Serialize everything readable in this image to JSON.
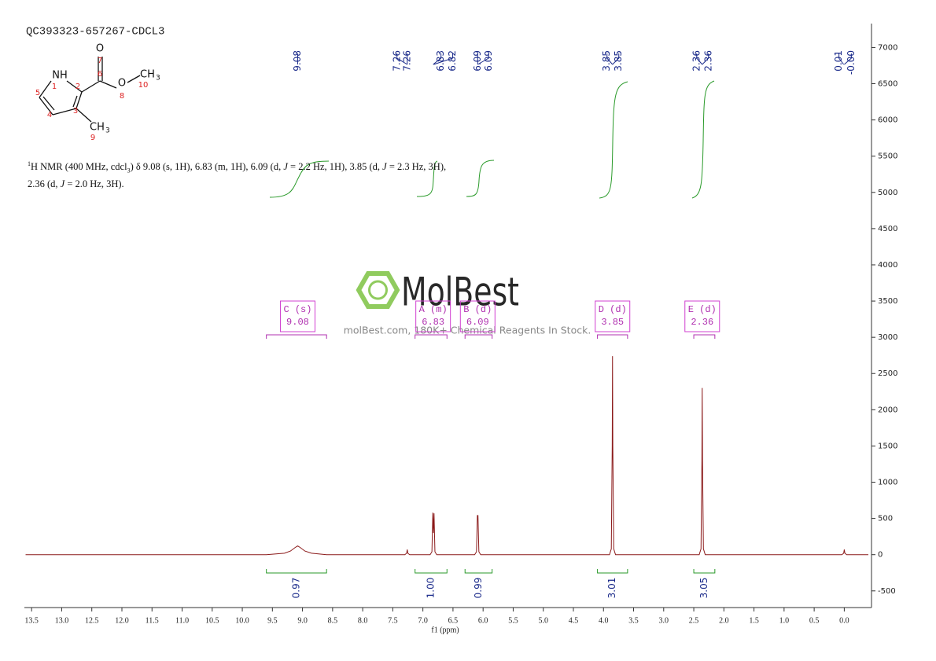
{
  "chart_data": {
    "type": "line",
    "title": "QC393323-657267-CDCL3",
    "xlabel": "f1 (ppm)",
    "x": [
      13.6,
      9.6,
      9.3,
      9.2,
      9.12,
      9.08,
      9.04,
      8.96,
      8.85,
      8.6,
      7.3,
      7.27,
      7.26,
      7.25,
      7.22,
      6.88,
      6.85,
      6.835,
      6.825,
      6.815,
      6.8,
      6.77,
      6.14,
      6.11,
      6.095,
      6.085,
      6.07,
      6.04,
      3.9,
      3.87,
      3.855,
      3.85,
      3.845,
      3.83,
      3.8,
      2.41,
      2.38,
      2.365,
      2.36,
      2.355,
      2.34,
      2.31,
      0.04,
      0.01,
      0,
      -0.01,
      -0.04,
      -0.4
    ],
    "values": [
      0,
      0,
      20,
      50,
      100,
      120,
      100,
      50,
      20,
      0,
      0,
      20,
      70,
      20,
      0,
      0,
      40,
      580,
      300,
      570,
      40,
      0,
      0,
      40,
      540,
      540,
      40,
      0,
      0,
      80,
      1500,
      2740,
      1500,
      80,
      0,
      0,
      80,
      1300,
      2300,
      1300,
      80,
      0,
      0,
      20,
      70,
      20,
      0,
      0
    ],
    "color": "#8b1a1a",
    "xlim": [
      13.62,
      -0.4
    ],
    "ylim": [
      -730,
      7330
    ],
    "xticks": [
      13.5,
      {
        "value": 13,
        "label": "13.0"
      },
      12.5,
      {
        "value": 12,
        "label": "12.0"
      },
      11.5,
      {
        "value": 11,
        "label": "11.0"
      },
      10.5,
      {
        "value": 10,
        "label": "10.0"
      },
      9.5,
      {
        "value": 9,
        "label": "9.0"
      },
      8.5,
      {
        "value": 8,
        "label": "8.0"
      },
      7.5,
      {
        "value": 7,
        "label": "7.0"
      },
      6.5,
      {
        "value": 6,
        "label": "6.0"
      },
      5.5,
      {
        "value": 5,
        "label": "5.0"
      },
      4.5,
      {
        "value": 4,
        "label": "4.0"
      },
      3.5,
      {
        "value": 3,
        "label": "3.0"
      },
      2.5,
      {
        "value": 2,
        "label": "2.0"
      },
      1.5,
      {
        "value": 1,
        "label": "1.0"
      },
      0.5,
      {
        "value": 0,
        "label": "0.0"
      }
    ],
    "yticks": [
      -500,
      0,
      500,
      1000,
      1500,
      2000,
      2500,
      3000,
      3500,
      4000,
      4500,
      5000,
      5500,
      6000,
      6500,
      7000
    ],
    "peak_labels": [
      9.08,
      7.26,
      7.26,
      6.83,
      6.82,
      6.09,
      6.09,
      3.85,
      3.85,
      2.36,
      2.36,
      0.01,
      {
        "value": 0,
        "label": "-0.00"
      }
    ],
    "integrals": [
      {
        "from": 9.6,
        "to": 8.6,
        "value": 0.97
      },
      {
        "from": 7.13,
        "to": 6.6,
        "value": {
          "value": 1,
          "label": "1.00"
        }
      },
      {
        "from": 6.3,
        "to": 5.85,
        "value": 0.99
      },
      {
        "from": 4.1,
        "to": 3.6,
        "value": 3.01
      },
      {
        "from": 2.5,
        "to": 2.15,
        "value": 3.05
      }
    ],
    "multiplets": [
      {
        "label": "C (s)",
        "shift": 9.08,
        "from": 9.6,
        "to": 8.6
      },
      {
        "label": "A (m)",
        "shift": 6.83,
        "from": 7.13,
        "to": 6.6
      },
      {
        "label": "B (d)",
        "shift": 6.09,
        "from": 6.3,
        "to": 5.85
      },
      {
        "label": "D (d)",
        "shift": 3.85,
        "from": 4.1,
        "to": 3.6
      },
      {
        "label": "E (d)",
        "shift": 2.36,
        "from": 2.5,
        "to": 2.15
      }
    ]
  },
  "description": {
    "line1": [
      "1",
      "H NMR (400 MHz, cdcl",
      "3",
      ") δ 9.08 (s, 1H), 6.83 (m, 1H), 6.09 (d, ",
      "J",
      " = 2.2 Hz, 1H), 3.85 (d, ",
      "J",
      " = 2.3 Hz, 3H),"
    ],
    "line2": [
      "2.36 (d, ",
      "J",
      " = 2.0 Hz, 3H)."
    ]
  },
  "structure": {
    "atoms": [
      "NH",
      "O",
      "O",
      "CH",
      "CH"
    ],
    "subscripts": [
      3,
      3
    ],
    "numbers": [
      7,
      1,
      2,
      6,
      8,
      10,
      5,
      4,
      3,
      9
    ]
  },
  "watermark": {
    "brand": "MolBest",
    "tagline": "molBest.com, 180K+ Chemical Reagents In Stock."
  }
}
